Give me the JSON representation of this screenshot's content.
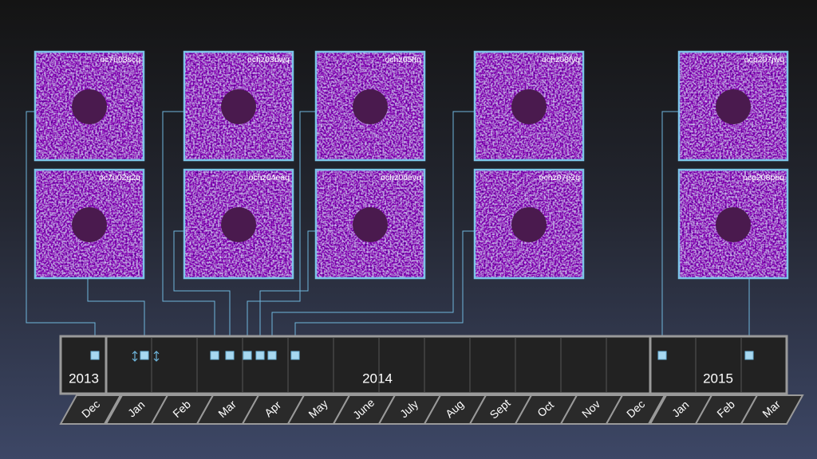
{
  "panels": [
    "oc7u03scq",
    "oc7u02g2q",
    "ochz03dwq",
    "ochz04eaq",
    "ochz05ftq",
    "ochz06evq",
    "ochz08fyq",
    "ochz07p2q",
    "ocp207jwq",
    "ocp208pbq"
  ],
  "timeline": {
    "years": [
      "2013",
      "2014",
      "2015"
    ],
    "months": [
      "Dec",
      "Jan",
      "Feb",
      "Mar",
      "Apr",
      "May",
      "June",
      "July",
      "Aug",
      "Sept",
      "Oct",
      "Nov",
      "Dec",
      "Jan",
      "Feb",
      "Mar"
    ]
  }
}
